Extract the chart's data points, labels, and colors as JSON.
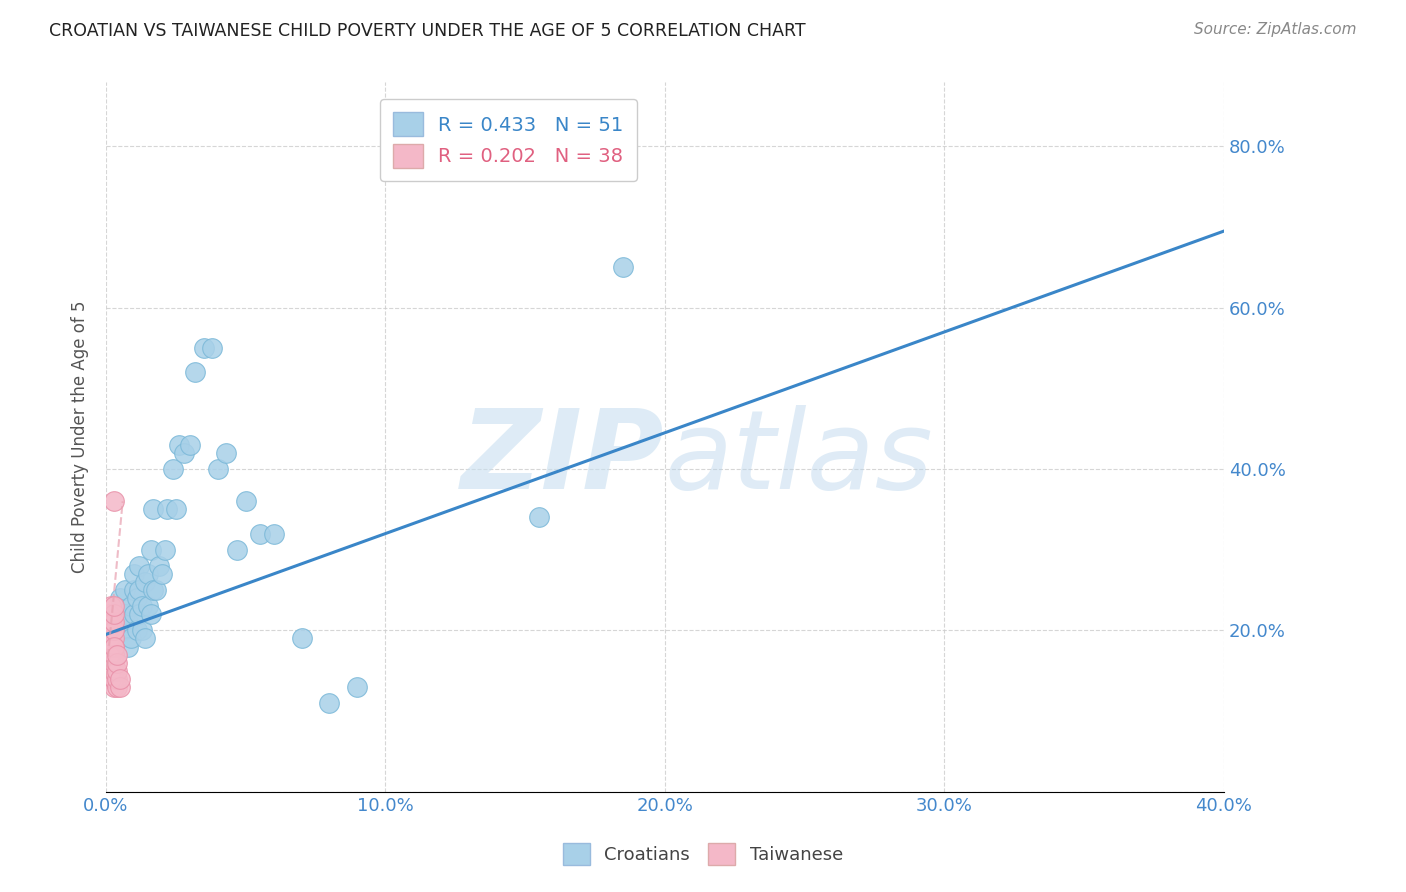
{
  "title": "CROATIAN VS TAIWANESE CHILD POVERTY UNDER THE AGE OF 5 CORRELATION CHART",
  "source": "Source: ZipAtlas.com",
  "ylabel_label": "Child Poverty Under the Age of 5",
  "xlim": [
    0.0,
    0.4
  ],
  "ylim": [
    0.0,
    0.88
  ],
  "croatian_R": 0.433,
  "croatian_N": 51,
  "taiwanese_R": 0.202,
  "taiwanese_N": 38,
  "croatian_color": "#a8d0e8",
  "taiwanese_color": "#f4b8c8",
  "regression_line_color_croatian": "#3a86c8",
  "regression_line_color_taiwanese": "#e8a0b0",
  "watermark_color": "#d0e8f8",
  "croatian_scatter_x": [
    0.004,
    0.005,
    0.006,
    0.007,
    0.007,
    0.008,
    0.008,
    0.009,
    0.009,
    0.01,
    0.01,
    0.01,
    0.011,
    0.011,
    0.012,
    0.012,
    0.012,
    0.013,
    0.013,
    0.014,
    0.014,
    0.015,
    0.015,
    0.016,
    0.016,
    0.017,
    0.017,
    0.018,
    0.019,
    0.02,
    0.021,
    0.022,
    0.024,
    0.025,
    0.026,
    0.028,
    0.03,
    0.032,
    0.035,
    0.038,
    0.04,
    0.043,
    0.047,
    0.05,
    0.055,
    0.06,
    0.07,
    0.08,
    0.09,
    0.155,
    0.185
  ],
  "croatian_scatter_y": [
    0.22,
    0.24,
    0.2,
    0.22,
    0.25,
    0.18,
    0.21,
    0.19,
    0.23,
    0.22,
    0.25,
    0.27,
    0.2,
    0.24,
    0.22,
    0.25,
    0.28,
    0.2,
    0.23,
    0.19,
    0.26,
    0.23,
    0.27,
    0.22,
    0.3,
    0.25,
    0.35,
    0.25,
    0.28,
    0.27,
    0.3,
    0.35,
    0.4,
    0.35,
    0.43,
    0.42,
    0.43,
    0.52,
    0.55,
    0.55,
    0.4,
    0.42,
    0.3,
    0.36,
    0.32,
    0.32,
    0.19,
    0.11,
    0.13,
    0.34,
    0.65
  ],
  "taiwanese_scatter_x": [
    0.001,
    0.001,
    0.001,
    0.001,
    0.001,
    0.002,
    0.002,
    0.002,
    0.002,
    0.002,
    0.002,
    0.002,
    0.002,
    0.002,
    0.003,
    0.003,
    0.003,
    0.003,
    0.003,
    0.003,
    0.003,
    0.003,
    0.003,
    0.003,
    0.003,
    0.003,
    0.003,
    0.003,
    0.003,
    0.003,
    0.003,
    0.004,
    0.004,
    0.004,
    0.004,
    0.004,
    0.005,
    0.005
  ],
  "taiwanese_scatter_y": [
    0.17,
    0.19,
    0.2,
    0.21,
    0.22,
    0.14,
    0.15,
    0.16,
    0.17,
    0.18,
    0.19,
    0.2,
    0.21,
    0.23,
    0.13,
    0.14,
    0.15,
    0.16,
    0.17,
    0.18,
    0.19,
    0.2,
    0.21,
    0.22,
    0.23,
    0.14,
    0.15,
    0.16,
    0.17,
    0.18,
    0.36,
    0.13,
    0.14,
    0.15,
    0.16,
    0.17,
    0.13,
    0.14
  ],
  "reg_line_cro_x0": 0.0,
  "reg_line_cro_y0": 0.195,
  "reg_line_cro_x1": 0.4,
  "reg_line_cro_y1": 0.695,
  "reg_line_tai_x0": 0.0,
  "reg_line_tai_y0": 0.14,
  "reg_line_tai_x1": 0.006,
  "reg_line_tai_y1": 0.36
}
